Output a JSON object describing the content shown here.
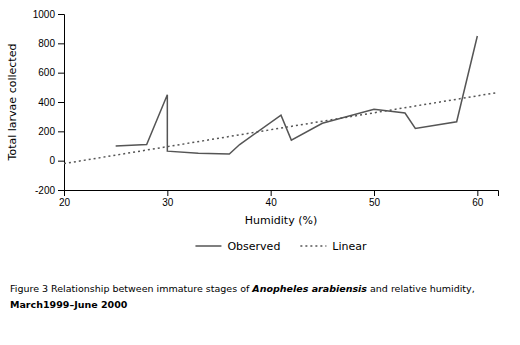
{
  "chart_data": {
    "type": "line",
    "xlabel": "Humidity (%)",
    "ylabel": "Total larvae collected",
    "series": [
      {
        "name": "Observed",
        "color": "#555555",
        "line_style": "solid",
        "x": [
          25,
          28,
          30,
          30,
          33,
          36,
          37,
          41,
          42,
          45,
          50,
          53,
          54,
          58,
          60
        ],
        "values": [
          100,
          110,
          450,
          65,
          50,
          45,
          110,
          310,
          140,
          255,
          350,
          325,
          220,
          265,
          850
        ]
      },
      {
        "name": "Linear",
        "color": "#555555",
        "line_style": "dotted",
        "x": [
          20,
          62
        ],
        "values": [
          -20,
          465
        ]
      }
    ],
    "xlim": [
      20,
      62
    ],
    "ylim": [
      -200,
      1000
    ],
    "xticks": [
      20,
      30,
      40,
      50,
      60
    ],
    "yticks": [
      -200,
      0,
      200,
      400,
      600,
      800,
      1000
    ],
    "grid": false,
    "legend": "bottom",
    "annotations": [
      "Figure 3 Relationship between immature stages of ",
      "Anopheles arabiensis",
      " and relative humidity,",
      "March1999–June 2000"
    ]
  }
}
